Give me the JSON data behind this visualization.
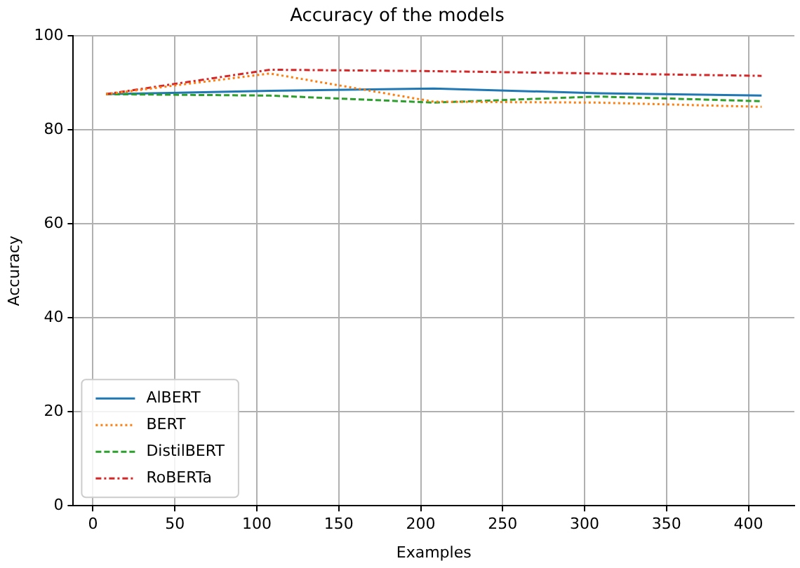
{
  "chart_data": {
    "type": "line",
    "title": "Accuracy of the models",
    "xlabel": "Examples",
    "ylabel": "Accuracy",
    "x": [
      8,
      108,
      208,
      308,
      408
    ],
    "xlim": [
      -12,
      428
    ],
    "xticks": [
      0,
      50,
      100,
      150,
      200,
      250,
      300,
      350,
      400
    ],
    "ylim": [
      0,
      100
    ],
    "yticks": [
      0,
      20,
      40,
      60,
      80,
      100
    ],
    "grid": true,
    "legend": "bottom left",
    "marker": "none",
    "series": [
      {
        "name": "AlBERT",
        "color": "#1f77b4",
        "line_style": "solid",
        "values": [
          87.6,
          88.3,
          88.8,
          87.8,
          87.3
        ]
      },
      {
        "name": "BERT",
        "color": "#ff7f0e",
        "line_style": "dotted",
        "values": [
          87.6,
          92.0,
          86.0,
          85.8,
          84.9
        ]
      },
      {
        "name": "DistilBERT",
        "color": "#2ca02c",
        "line_style": "dashed",
        "values": [
          87.6,
          87.3,
          85.8,
          87.1,
          86.1
        ]
      },
      {
        "name": "RoBERTa",
        "color": "#d62728",
        "line_style": "dashdot",
        "values": [
          87.6,
          92.8,
          92.5,
          92.0,
          91.5
        ]
      }
    ]
  }
}
